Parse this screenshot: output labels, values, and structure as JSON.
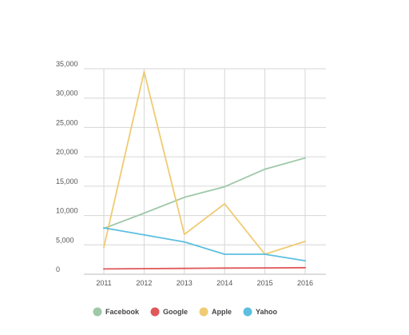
{
  "chart_data": {
    "type": "line",
    "title": "",
    "xlabel": "",
    "ylabel": "",
    "x": [
      "2011",
      "2012",
      "2013",
      "2014",
      "2015",
      "2016"
    ],
    "ylim": [
      0,
      35000
    ],
    "yticks": [
      "0",
      "5,000",
      "10,000",
      "15,000",
      "20,000",
      "25,000",
      "30,000",
      "35,000"
    ],
    "grid": true,
    "legend_position": "bottom",
    "series": [
      {
        "name": "Facebook",
        "color": "#9ec8a8",
        "values": [
          7800,
          10400,
          13100,
          14900,
          17900,
          19800
        ]
      },
      {
        "name": "Google",
        "color": "#e0585a",
        "values": [
          900,
          950,
          1000,
          1050,
          1080,
          1120
        ]
      },
      {
        "name": "Apple",
        "color": "#efcb72",
        "values": [
          4600,
          34500,
          6800,
          12000,
          3400,
          5600
        ]
      },
      {
        "name": "Yahoo",
        "color": "#5cbfe0",
        "values": [
          7900,
          6700,
          5500,
          3400,
          3400,
          2300
        ]
      }
    ]
  }
}
